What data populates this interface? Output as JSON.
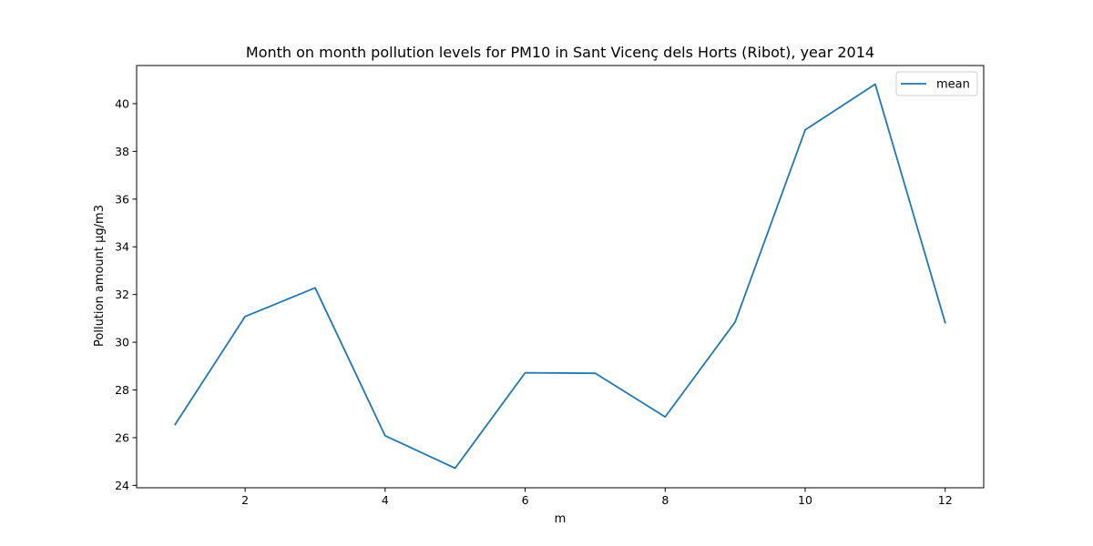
{
  "chart_data": {
    "type": "line",
    "title": "Month on month pollution levels for PM10 in Sant Vicenç dels Horts (Ribot), year 2014",
    "xlabel": "m",
    "ylabel": "Pollution amount µg/m3",
    "x": [
      1,
      2,
      3,
      4,
      5,
      6,
      7,
      8,
      9,
      10,
      11,
      12
    ],
    "series": [
      {
        "name": "mean",
        "color": "#1f77b4",
        "values": [
          26.55,
          31.08,
          32.28,
          26.08,
          24.72,
          28.72,
          28.7,
          26.87,
          30.85,
          38.9,
          40.82,
          30.82
        ]
      }
    ],
    "xlim": [
      0.45,
      12.55
    ],
    "ylim": [
      23.9,
      41.6
    ],
    "xticks": [
      2,
      4,
      6,
      8,
      10,
      12
    ],
    "yticks": [
      24,
      26,
      28,
      30,
      32,
      34,
      36,
      38,
      40
    ],
    "grid": false,
    "legend_position": "top-right"
  }
}
